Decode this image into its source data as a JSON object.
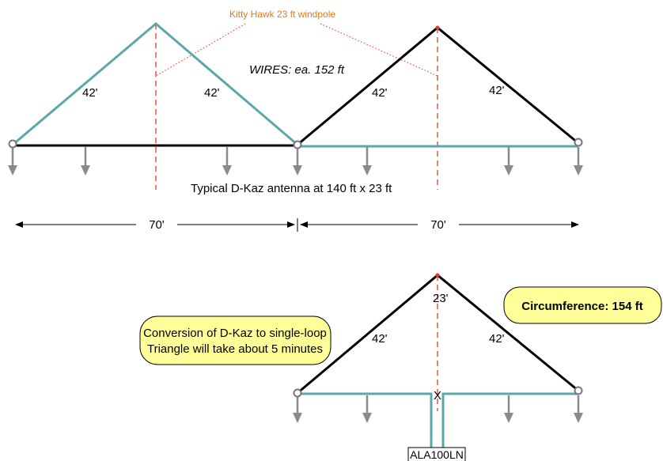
{
  "top_diagram": {
    "pole_label": "Kitty Hawk 23 ft windpole",
    "wires_label": "WIRES: ea. 152 ft",
    "left_triangle": {
      "left_leg": "42'",
      "right_leg": "42'"
    },
    "right_triangle": {
      "left_leg": "42'",
      "right_leg": "42'"
    },
    "caption": "Typical D-Kaz antenna at 140 ft x 23 ft",
    "dim_left": "70'",
    "dim_right": "70'"
  },
  "bottom_diagram": {
    "conversion_note_line1": "Conversion of D-Kaz to single-loop",
    "conversion_note_line2": "Triangle will take about 5 minutes",
    "circumference": "Circumference: 154 ft",
    "height": "23'",
    "left_leg": "42'",
    "right_leg": "42'",
    "feed_point": "X",
    "balun": "ALA100LN"
  },
  "colors": {
    "teal_wire": "#5ba8ab",
    "black_wire": "#000000",
    "pole": "#e23a2a",
    "label_orange": "#e87a14",
    "callout_fill": "#ffff99"
  }
}
